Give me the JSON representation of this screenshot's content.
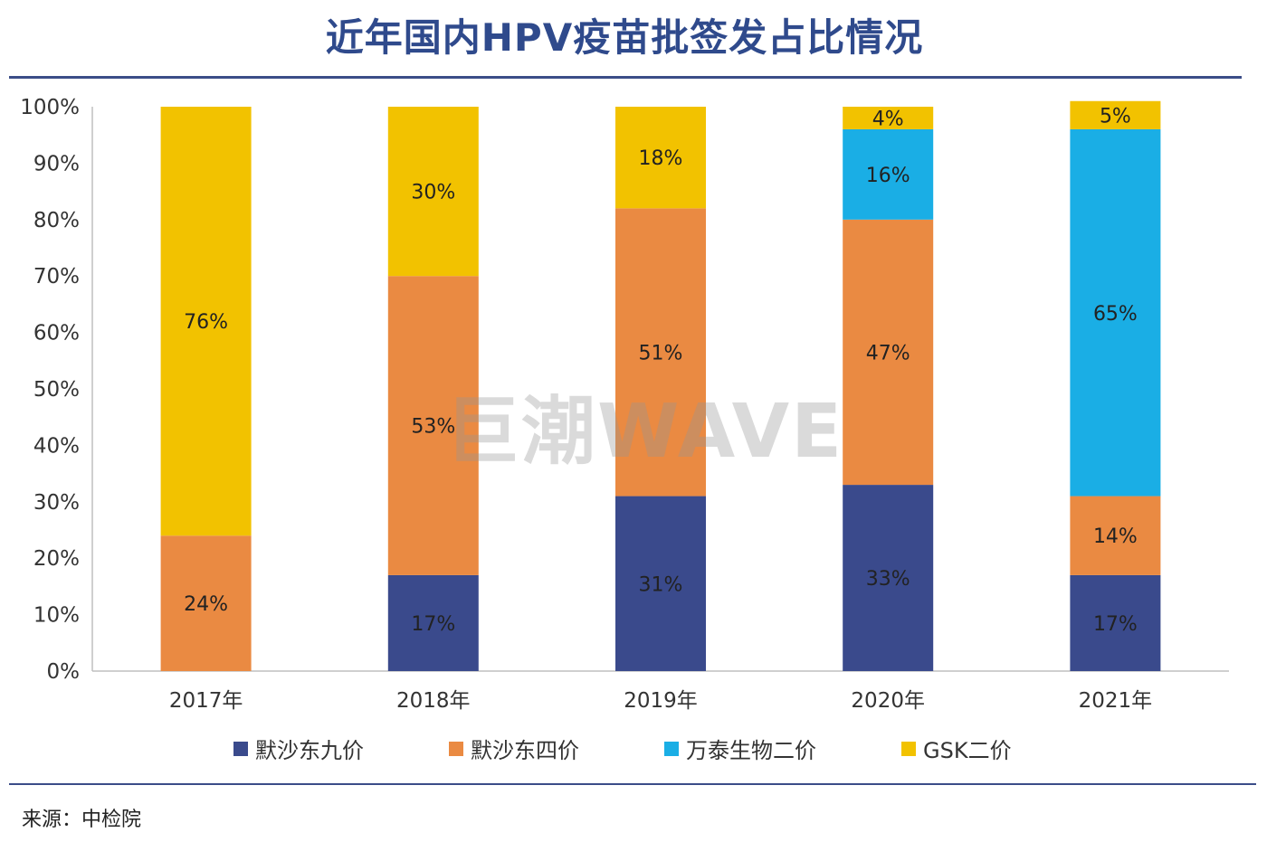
{
  "title": "近年国内HPV疫苗批签发占比情况",
  "source": "来源：中检院",
  "watermark": "巨潮WAVE",
  "chart_data": {
    "type": "bar",
    "stacked": true,
    "categories": [
      "2017年",
      "2018年",
      "2019年",
      "2020年",
      "2021年"
    ],
    "ylim": [
      0,
      100
    ],
    "yticks": [
      "0%",
      "10%",
      "20%",
      "30%",
      "40%",
      "50%",
      "60%",
      "70%",
      "80%",
      "90%",
      "100%"
    ],
    "series": [
      {
        "name": "默沙东九价",
        "color": "#3a4a8c",
        "values": [
          0,
          17,
          31,
          33,
          17
        ],
        "labels": [
          "",
          "17%",
          "31%",
          "33%",
          "17%"
        ]
      },
      {
        "name": "默沙东四价",
        "color": "#ea8a42",
        "values": [
          24,
          53,
          51,
          47,
          14
        ],
        "labels": [
          "24%",
          "53%",
          "51%",
          "47%",
          "14%"
        ]
      },
      {
        "name": "万泰生物二价",
        "color": "#1aaee5",
        "values": [
          0,
          0,
          0,
          16,
          65
        ],
        "labels": [
          "",
          "",
          "",
          "16%",
          "65%"
        ]
      },
      {
        "name": "GSK二价",
        "color": "#f2c200",
        "values": [
          76,
          30,
          18,
          4,
          5
        ],
        "labels": [
          "76%",
          "30%",
          "18%",
          "4%",
          "5%"
        ]
      }
    ],
    "legend_position": "bottom"
  }
}
